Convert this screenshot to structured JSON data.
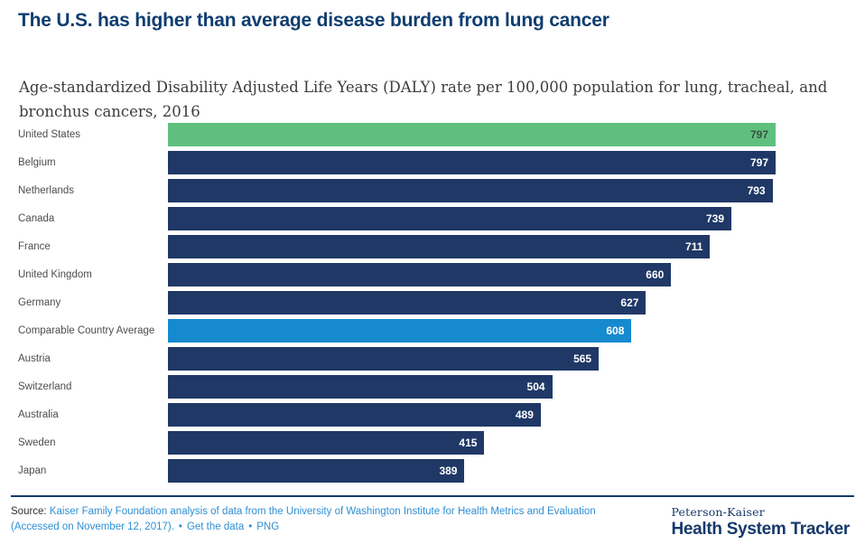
{
  "header": {
    "title": "The U.S. has higher than average disease burden from lung cancer",
    "subtitle": "Age-standardized Disability Adjusted Life Years (DALY) rate per 100,000 population for lung, tracheal, and bronchus cancers, 2016"
  },
  "chart_data": {
    "type": "bar",
    "orientation": "horizontal",
    "title": "The U.S. has higher than average disease burden from lung cancer",
    "subtitle": "Age-standardized Disability Adjusted Life Years (DALY) rate per 100,000 population for lung, tracheal, and bronchus cancers, 2016",
    "xlim": [
      0,
      797
    ],
    "grid": false,
    "value_labels": "inside-end",
    "categories": [
      "United States",
      "Belgium",
      "Netherlands",
      "Canada",
      "France",
      "United Kingdom",
      "Germany",
      "Comparable Country Average",
      "Austria",
      "Switzerland",
      "Australia",
      "Sweden",
      "Japan"
    ],
    "values": [
      797,
      797,
      793,
      739,
      711,
      660,
      627,
      608,
      565,
      504,
      489,
      415,
      389
    ],
    "series": [
      {
        "label": "United States",
        "value": 797,
        "bar_color": "#5FC07D",
        "value_color": "#3E4F45"
      },
      {
        "label": "Belgium",
        "value": 797,
        "bar_color": "#1F3866",
        "value_color": "#FFFFFF"
      },
      {
        "label": "Netherlands",
        "value": 793,
        "bar_color": "#1F3866",
        "value_color": "#FFFFFF"
      },
      {
        "label": "Canada",
        "value": 739,
        "bar_color": "#1F3866",
        "value_color": "#FFFFFF"
      },
      {
        "label": "France",
        "value": 711,
        "bar_color": "#1F3866",
        "value_color": "#FFFFFF"
      },
      {
        "label": "United Kingdom",
        "value": 660,
        "bar_color": "#1F3866",
        "value_color": "#FFFFFF"
      },
      {
        "label": "Germany",
        "value": 627,
        "bar_color": "#1F3866",
        "value_color": "#FFFFFF"
      },
      {
        "label": "Comparable Country Average",
        "value": 608,
        "bar_color": "#168ACE",
        "value_color": "#FFFFFF"
      },
      {
        "label": "Austria",
        "value": 565,
        "bar_color": "#1F3866",
        "value_color": "#FFFFFF"
      },
      {
        "label": "Switzerland",
        "value": 504,
        "bar_color": "#1F3866",
        "value_color": "#FFFFFF"
      },
      {
        "label": "Australia",
        "value": 489,
        "bar_color": "#1F3866",
        "value_color": "#FFFFFF"
      },
      {
        "label": "Sweden",
        "value": 415,
        "bar_color": "#1F3866",
        "value_color": "#FFFFFF"
      },
      {
        "label": "Japan",
        "value": 389,
        "bar_color": "#1F3866",
        "value_color": "#FFFFFF"
      }
    ],
    "colors": {
      "default_bar": "#1F3866",
      "us_highlight": "#5FC07D",
      "average_highlight": "#168ACE"
    }
  },
  "footer": {
    "source_prefix": "Source: ",
    "source_link": "Kaiser Family Foundation analysis of data from the University of Washington Institute for Health Metrics and Evaluation (Accessed on November 12, 2017).",
    "separator": "•",
    "get_data_label": "Get the data",
    "png_label": "PNG",
    "logo": {
      "top": "Peterson-Kaiser",
      "bottom": "Health System Tracker"
    }
  },
  "colors": {
    "title_navy": "#0F3D70",
    "logo_navy": "#16396B",
    "link_blue": "#2E8FD3",
    "label_gray": "#4D4D4D"
  }
}
